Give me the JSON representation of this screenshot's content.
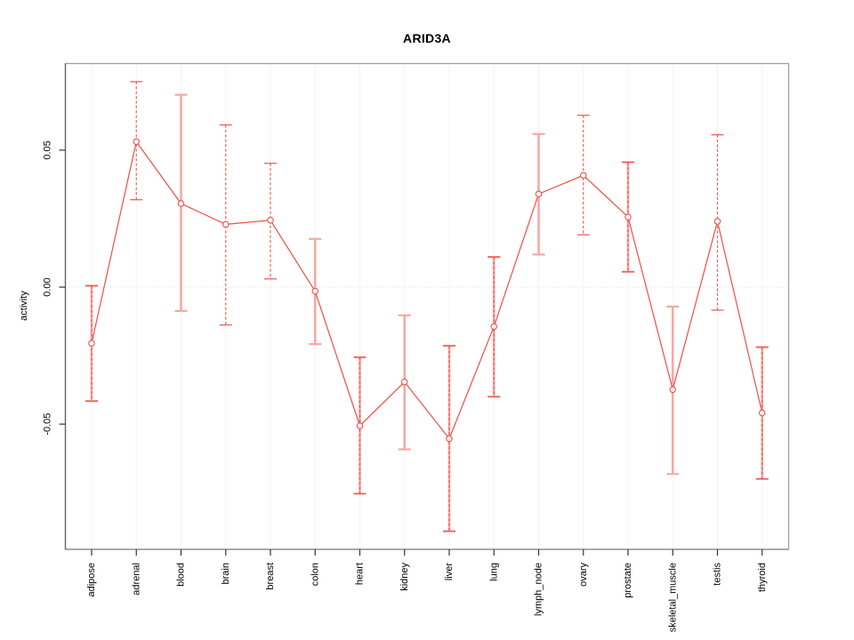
{
  "figure": {
    "title": "ARID3A"
  },
  "chart_data": {
    "type": "line",
    "title": "ARID3A",
    "xlabel": "",
    "ylabel": "activity",
    "categories": [
      "adipose",
      "adrenal",
      "blood",
      "brain",
      "breast",
      "colon",
      "heart",
      "kidney",
      "liver",
      "lung",
      "lymph_node",
      "ovary",
      "prostate",
      "skeletal_muscle",
      "testis",
      "thyroid"
    ],
    "series": [
      {
        "name": "ARID3A activity",
        "values": [
          -0.0205,
          0.0531,
          0.0305,
          0.0229,
          0.0244,
          -0.0015,
          -0.0506,
          -0.0346,
          -0.0553,
          -0.0144,
          0.034,
          0.0408,
          0.0256,
          -0.0374,
          0.024,
          -0.0459
        ],
        "ci_lower": [
          -0.0416,
          0.0319,
          -0.0087,
          -0.0138,
          0.003,
          -0.0208,
          -0.0754,
          -0.0592,
          -0.0891,
          -0.04,
          0.0119,
          0.0191,
          0.0056,
          -0.0682,
          -0.0084,
          -0.07
        ],
        "ci_upper": [
          0.0005,
          0.075,
          0.0702,
          0.0592,
          0.0452,
          0.0176,
          -0.0256,
          -0.0103,
          -0.0214,
          0.011,
          0.0559,
          0.0627,
          0.0456,
          -0.0071,
          0.0556,
          -0.0219
        ]
      }
    ],
    "error_bar_styles": [
      "both",
      "dashed",
      "pink",
      "dashed",
      "dashed",
      "pink",
      "both",
      "pink",
      "both",
      "both",
      "pink",
      "dashed",
      "both",
      "pink",
      "dashed",
      "both"
    ],
    "yticks": [
      -0.05,
      0,
      0.05
    ],
    "ytick_labels": [
      "-0.05",
      "0.00",
      "0.05"
    ],
    "ylim": [
      -0.0957,
      0.0816
    ],
    "grid": {
      "vertical_at_categories": true,
      "zero_line": true,
      "style": "dotted"
    },
    "legend": "none",
    "marker": "open-circle",
    "colors": {
      "line": "#ee4f46",
      "error_bar_pink": "#f7a8a3",
      "grid": "#dcdcdc",
      "box": "#a0a0a0",
      "axis_left": "#666666",
      "axis_bottom": "#888888",
      "tick": "#333333",
      "text": "#000000",
      "background": "#ffffff"
    }
  }
}
